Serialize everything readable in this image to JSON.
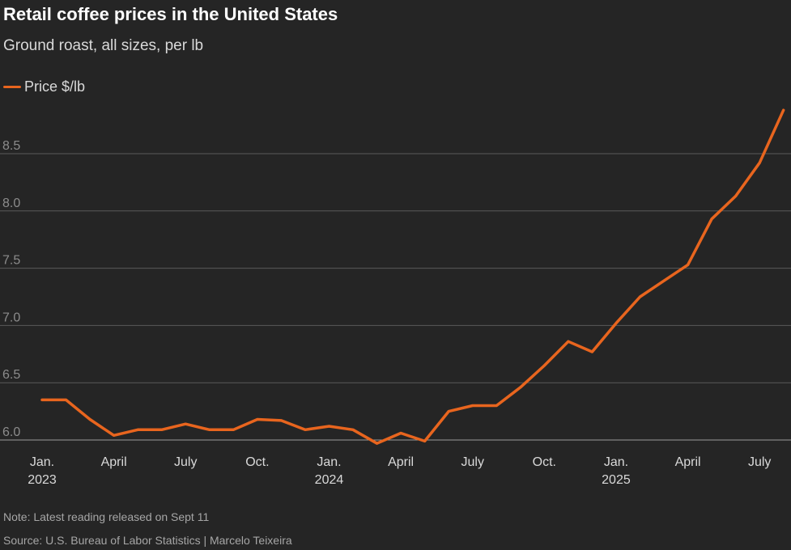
{
  "header": {
    "title": "Retail coffee prices in the United States",
    "subtitle": "Ground roast, all sizes, per lb"
  },
  "legend": {
    "label": "Price $/lb"
  },
  "colors": {
    "background": "#252525",
    "series": "#e8651e",
    "gridline": "#5a5a5a",
    "tick_text": "#8c8c8c",
    "axis_text": "#d9d9d9"
  },
  "chart_data": {
    "type": "line",
    "title": "Retail coffee prices in the United States",
    "subtitle": "Ground roast, all sizes, per lb",
    "xlabel": "",
    "ylabel": "",
    "ylim": [
      6.0,
      8.9
    ],
    "yticks": [
      "6.0",
      "6.5",
      "7.0",
      "7.5",
      "8.0",
      "8.5"
    ],
    "grid": true,
    "legend_position": "top-left",
    "xtick_labels": [
      {
        "month": "2023-01",
        "lines": [
          "Jan.",
          "2023"
        ]
      },
      {
        "month": "2023-04",
        "lines": [
          "April"
        ]
      },
      {
        "month": "2023-07",
        "lines": [
          "July"
        ]
      },
      {
        "month": "2023-10",
        "lines": [
          "Oct."
        ]
      },
      {
        "month": "2024-01",
        "lines": [
          "Jan.",
          "2024"
        ]
      },
      {
        "month": "2024-04",
        "lines": [
          "April"
        ]
      },
      {
        "month": "2024-07",
        "lines": [
          "July"
        ]
      },
      {
        "month": "2024-10",
        "lines": [
          "Oct."
        ]
      },
      {
        "month": "2025-01",
        "lines": [
          "Jan.",
          "2025"
        ]
      },
      {
        "month": "2025-04",
        "lines": [
          "April"
        ]
      },
      {
        "month": "2025-07",
        "lines": [
          "July"
        ]
      }
    ],
    "x": [
      "2023-01",
      "2023-02",
      "2023-03",
      "2023-04",
      "2023-05",
      "2023-06",
      "2023-07",
      "2023-08",
      "2023-09",
      "2023-10",
      "2023-11",
      "2023-12",
      "2024-01",
      "2024-02",
      "2024-03",
      "2024-04",
      "2024-05",
      "2024-06",
      "2024-07",
      "2024-08",
      "2024-09",
      "2024-10",
      "2024-11",
      "2024-12",
      "2025-01",
      "2025-02",
      "2025-03",
      "2025-04",
      "2025-05",
      "2025-06",
      "2025-07",
      "2025-08"
    ],
    "series": [
      {
        "name": "Price $/lb",
        "values": [
          6.35,
          6.35,
          6.18,
          6.04,
          6.09,
          6.09,
          6.14,
          6.09,
          6.09,
          6.18,
          6.17,
          6.09,
          6.12,
          6.09,
          5.97,
          6.06,
          5.99,
          6.25,
          6.3,
          6.3,
          6.46,
          6.65,
          6.86,
          6.77,
          7.02,
          7.25,
          7.39,
          7.53,
          7.93,
          8.13,
          8.42,
          8.88
        ]
      }
    ]
  },
  "footer": {
    "note": "Note: Latest reading released on Sept 11",
    "source": "Source: U.S. Bureau of Labor Statistics | Marcelo Teixeira"
  }
}
